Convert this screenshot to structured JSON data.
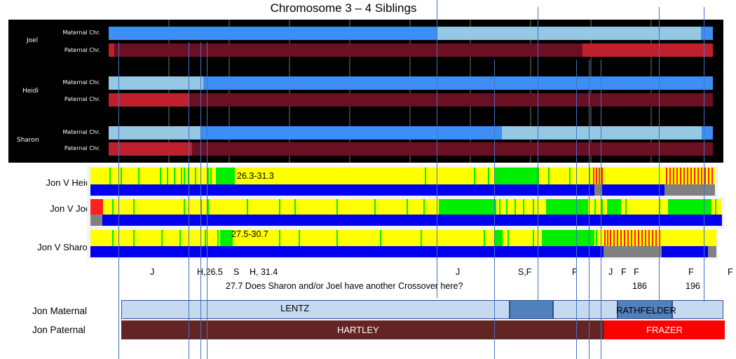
{
  "title": "Chromosome 3 – 4 Siblings",
  "siblings": [
    {
      "name": "Joel",
      "maternal_label": "Maternal Chr.",
      "paternal_label": "Paternal Chr."
    },
    {
      "name": "Heidi",
      "maternal_label": "Maternal Chr.",
      "paternal_label": "Paternal Chr."
    },
    {
      "name": "Sharon",
      "maternal_label": "Maternal Chr.",
      "paternal_label": "Paternal Chr."
    }
  ],
  "comparisons": [
    {
      "label": "Jon V Heidi",
      "annotation": "26.3-31.3"
    },
    {
      "label": "Jon V Joel",
      "annotation": ""
    },
    {
      "label": "Jon V Sharon",
      "annotation": "27.5-30.7"
    }
  ],
  "markers": [
    "J",
    "H,26.5",
    "S",
    "H, 31.4",
    "J",
    "S,F",
    "F",
    "J",
    "F",
    "F",
    "F",
    "F"
  ],
  "marker_numbers": [
    "186",
    "196"
  ],
  "question": "27.7 Does Sharon and/or Joel have another Crossover here?",
  "jon_maternal": {
    "label": "Jon Maternal",
    "segment1": "LENTZ",
    "segment2": "RATHFELDER"
  },
  "jon_paternal": {
    "label": "Jon Paternal",
    "segment1": "HARTLEY",
    "segment2": "FRAZER"
  },
  "colors": {
    "maternal_dark": "#3d8ff5",
    "maternal_light": "#95c8e3",
    "paternal_dark": "#6b0f22",
    "paternal_light": "#c0202d",
    "fully_identical": "#00ef00",
    "half_identical": "#ffff00",
    "no_match": "#ff2020",
    "shared_blue": "#0000ee",
    "gray": "#808080",
    "guide_line": "#4472c4",
    "lentz_box": "#c5d9f1",
    "rath_dark": "#4f81bd",
    "hartley_box": "#632523",
    "frazer_box": "#ff0000"
  }
}
